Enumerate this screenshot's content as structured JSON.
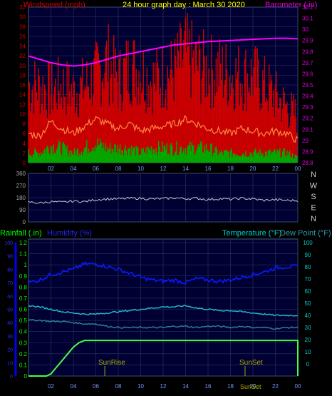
{
  "header": {
    "left_label": "Windspeed (mph)",
    "center_title": "24 hour graph day : March 30 2020",
    "right_label": "Barometer (.in)"
  },
  "colors": {
    "plot_bg": "#000033",
    "grid": "#2a3a60",
    "wind_axis": "#cc0000",
    "baro_axis": "#dd00dd",
    "title": "#ffff00",
    "gust": "#cc0000",
    "wind_avg": "#ff8844",
    "wind_min": "#00aa00",
    "baro": "#ff00ff",
    "direction": "#c8c8c8",
    "rain_axis": "#00ff00",
    "hum_axis": "#0000ee",
    "temp_axis": "#00cccc",
    "dew_axis": "#00aaaa",
    "humidity": "#0a1aff",
    "temperature": "#22b8c8",
    "dewpoint": "#2a8090",
    "rainfall": "#44ff44",
    "sun": "#aaaa00"
  },
  "chart_data": [
    {
      "type": "line",
      "panel": "wind-barometer",
      "x_ticks": [
        "02",
        "04",
        "06",
        "08",
        "10",
        "12",
        "14",
        "16",
        "18",
        "20",
        "22",
        "00"
      ],
      "wind_axis": {
        "label": "Windspeed (mph)",
        "ylim": [
          0,
          32
        ],
        "ticks": [
          0,
          2,
          4,
          6,
          8,
          10,
          12,
          14,
          16,
          18,
          20,
          22,
          24,
          26,
          28,
          30,
          32
        ]
      },
      "baro_axis": {
        "label": "Barometer (.in)",
        "ylim": [
          28.8,
          30.2
        ],
        "ticks": [
          28.8,
          28.9,
          29,
          29.1,
          29.2,
          29.3,
          29.4,
          29.5,
          29.6,
          29.7,
          29.8,
          29.9,
          30,
          30.1,
          30.2
        ]
      },
      "series": [
        {
          "name": "Gust",
          "axis": "wind",
          "hours": [
            0,
            1,
            2,
            3,
            4,
            5,
            6,
            7,
            8,
            9,
            10,
            11,
            12,
            13,
            14,
            15,
            16,
            17,
            18,
            19,
            20,
            21,
            22,
            23,
            24
          ],
          "values": [
            15,
            15,
            14,
            15,
            14,
            15,
            17,
            20,
            16,
            19,
            18,
            16,
            17,
            18,
            21,
            19,
            18,
            18,
            17,
            17,
            17,
            15,
            13,
            11,
            9
          ]
        },
        {
          "name": "Average",
          "axis": "wind",
          "hours": [
            0,
            1,
            2,
            3,
            4,
            5,
            6,
            7,
            8,
            9,
            10,
            11,
            12,
            13,
            14,
            15,
            16,
            17,
            18,
            19,
            20,
            21,
            22,
            23,
            24
          ],
          "values": [
            6,
            5.5,
            8.5,
            7,
            6,
            7.5,
            9,
            8,
            7,
            8,
            6.5,
            7,
            7.5,
            8,
            9,
            8,
            7,
            6.5,
            6,
            7,
            6.5,
            6,
            6.5,
            6,
            4.5
          ]
        },
        {
          "name": "Minimum",
          "axis": "wind",
          "hours": [
            0,
            1,
            2,
            3,
            4,
            5,
            6,
            7,
            8,
            9,
            10,
            11,
            12,
            13,
            14,
            15,
            16,
            17,
            18,
            19,
            20,
            21,
            22,
            23,
            24
          ],
          "values": [
            2,
            2,
            3.5,
            3,
            2,
            3,
            4,
            3,
            3,
            3,
            2,
            3,
            3,
            3,
            3,
            3,
            3,
            2,
            2,
            2,
            2,
            2,
            2,
            2,
            1
          ]
        },
        {
          "name": "Barometer",
          "axis": "baro",
          "hours": [
            0,
            1,
            2,
            3,
            4,
            5,
            6,
            7,
            8,
            9,
            10,
            11,
            12,
            13,
            14,
            15,
            16,
            17,
            18,
            19,
            20,
            21,
            22,
            23,
            24
          ],
          "values": [
            29.76,
            29.73,
            29.7,
            29.68,
            29.67,
            29.68,
            29.7,
            29.73,
            29.76,
            29.78,
            29.8,
            29.82,
            29.84,
            29.86,
            29.87,
            29.88,
            29.89,
            29.895,
            29.9,
            29.905,
            29.91,
            29.915,
            29.92,
            29.92,
            29.915
          ]
        }
      ]
    },
    {
      "type": "line",
      "panel": "wind-direction",
      "x_ticks": [
        "02",
        "04",
        "06",
        "08",
        "10",
        "12",
        "14",
        "16",
        "18",
        "20",
        "22",
        "00"
      ],
      "ylim": [
        0,
        360
      ],
      "ticks": [
        0,
        90,
        180,
        270,
        360
      ],
      "compass": [
        "N",
        "W",
        "S",
        "E",
        "N"
      ],
      "series": [
        {
          "name": "Direction",
          "hours": [
            0,
            1,
            2,
            3,
            4,
            5,
            6,
            7,
            8,
            9,
            10,
            11,
            12,
            13,
            14,
            15,
            16,
            17,
            18,
            19,
            20,
            21,
            22,
            23,
            24
          ],
          "values": [
            148,
            140,
            150,
            145,
            155,
            150,
            165,
            170,
            170,
            175,
            175,
            170,
            172,
            178,
            172,
            175,
            165,
            172,
            168,
            175,
            170,
            160,
            165,
            160,
            158
          ]
        }
      ]
    },
    {
      "type": "line",
      "panel": "humidity-temperature-rain",
      "x_ticks": [
        "02",
        "04",
        "06",
        "08",
        "10",
        "12",
        "14",
        "16",
        "18",
        "20",
        "22",
        "00"
      ],
      "rain_axis": {
        "label": "Rainfall (.in)",
        "ylim": [
          0,
          1.2
        ],
        "ticks": [
          0,
          0.1,
          0.2,
          0.3,
          0.4,
          0.5,
          0.6,
          0.7,
          0.8,
          0.9,
          1,
          1.1,
          1.2
        ]
      },
      "humidity_axis": {
        "label": "Humidity (%)",
        "ylim": [
          0,
          100
        ],
        "ticks": [
          0,
          10,
          20,
          30,
          40,
          50,
          60,
          70,
          80,
          90,
          100
        ]
      },
      "temp_axis": {
        "label": "Temperature (°F)",
        "ylim": [
          -10,
          100
        ],
        "ticks": [
          0,
          10,
          20,
          30,
          40,
          50,
          60,
          70,
          80,
          90,
          100
        ]
      },
      "dew_label": "Dew Point (°F)",
      "series": [
        {
          "name": "Humidity",
          "axis": "humidity",
          "hours": [
            0,
            1,
            2,
            3,
            4,
            5,
            6,
            7,
            8,
            9,
            10,
            11,
            12,
            13,
            14,
            15,
            16,
            17,
            18,
            19,
            20,
            21,
            22,
            23,
            24
          ],
          "values": [
            70,
            72,
            76,
            78,
            80,
            84,
            84,
            82,
            80,
            77,
            74,
            72,
            71,
            72,
            70,
            73,
            72,
            71,
            72,
            74,
            76,
            78,
            81,
            82,
            82
          ]
        },
        {
          "name": "Temperature",
          "axis": "temp",
          "hours": [
            0,
            1,
            2,
            3,
            4,
            5,
            6,
            7,
            8,
            9,
            10,
            11,
            12,
            13,
            14,
            15,
            16,
            17,
            18,
            19,
            20,
            21,
            22,
            23,
            24
          ],
          "values": [
            48,
            47,
            45,
            43,
            42,
            41,
            41,
            42,
            43,
            44,
            45,
            46,
            47,
            47,
            48,
            46,
            45,
            44,
            44,
            43,
            42,
            41,
            40,
            40,
            40
          ]
        },
        {
          "name": "Dew Point",
          "axis": "temp",
          "hours": [
            0,
            1,
            2,
            3,
            4,
            5,
            6,
            7,
            8,
            9,
            10,
            11,
            12,
            13,
            14,
            15,
            16,
            17,
            18,
            19,
            20,
            21,
            22,
            23,
            24
          ],
          "values": [
            36,
            36,
            35,
            35,
            34,
            33,
            33,
            31,
            30,
            30,
            30,
            30,
            30,
            31,
            31,
            30,
            31,
            31,
            30,
            31,
            30,
            30,
            29,
            30,
            30
          ]
        },
        {
          "name": "Rainfall",
          "axis": "rain",
          "hours": [
            0,
            1,
            1.6,
            2,
            2.5,
            3,
            3.5,
            4,
            4.5,
            5,
            24,
            24.05
          ],
          "values": [
            0,
            0,
            0,
            0.02,
            0.08,
            0.14,
            0.2,
            0.26,
            0.3,
            0.32,
            0.32,
            0
          ]
        }
      ],
      "sun": {
        "rise_label": "SunRise",
        "rise_hour": 6.8,
        "set_label": "SunSet",
        "set_hour": 19.3
      }
    }
  ],
  "bottom_labels": {
    "sunset_small": "SunSet"
  }
}
